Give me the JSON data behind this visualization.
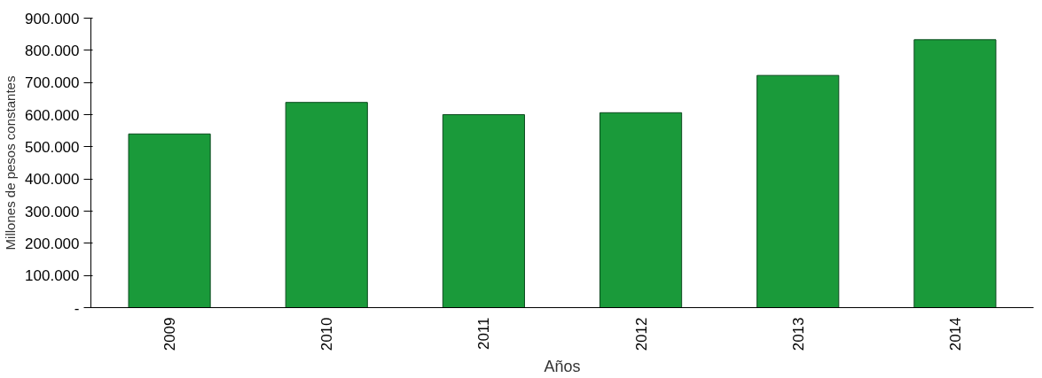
{
  "chart_data": {
    "type": "bar",
    "xlabel": "Años",
    "ylabel": "Millones de pesos constantes",
    "categories": [
      "2009",
      "2010",
      "2011",
      "2012",
      "2013",
      "2014"
    ],
    "values": [
      540000,
      638000,
      600000,
      606000,
      722000,
      833000
    ],
    "color": "#1a9a3a",
    "ylim": [
      0,
      900000
    ],
    "yticks": [
      {
        "value": 0,
        "label": "-"
      },
      {
        "value": 100000,
        "label": "100.000"
      },
      {
        "value": 200000,
        "label": "200.000"
      },
      {
        "value": 300000,
        "label": "300.000"
      },
      {
        "value": 400000,
        "label": "400.000"
      },
      {
        "value": 500000,
        "label": "500.000"
      },
      {
        "value": 600000,
        "label": "600.000"
      },
      {
        "value": 700000,
        "label": "700.000"
      },
      {
        "value": 800000,
        "label": "800.000"
      },
      {
        "value": 900000,
        "label": "900.000"
      }
    ],
    "grid": false
  }
}
